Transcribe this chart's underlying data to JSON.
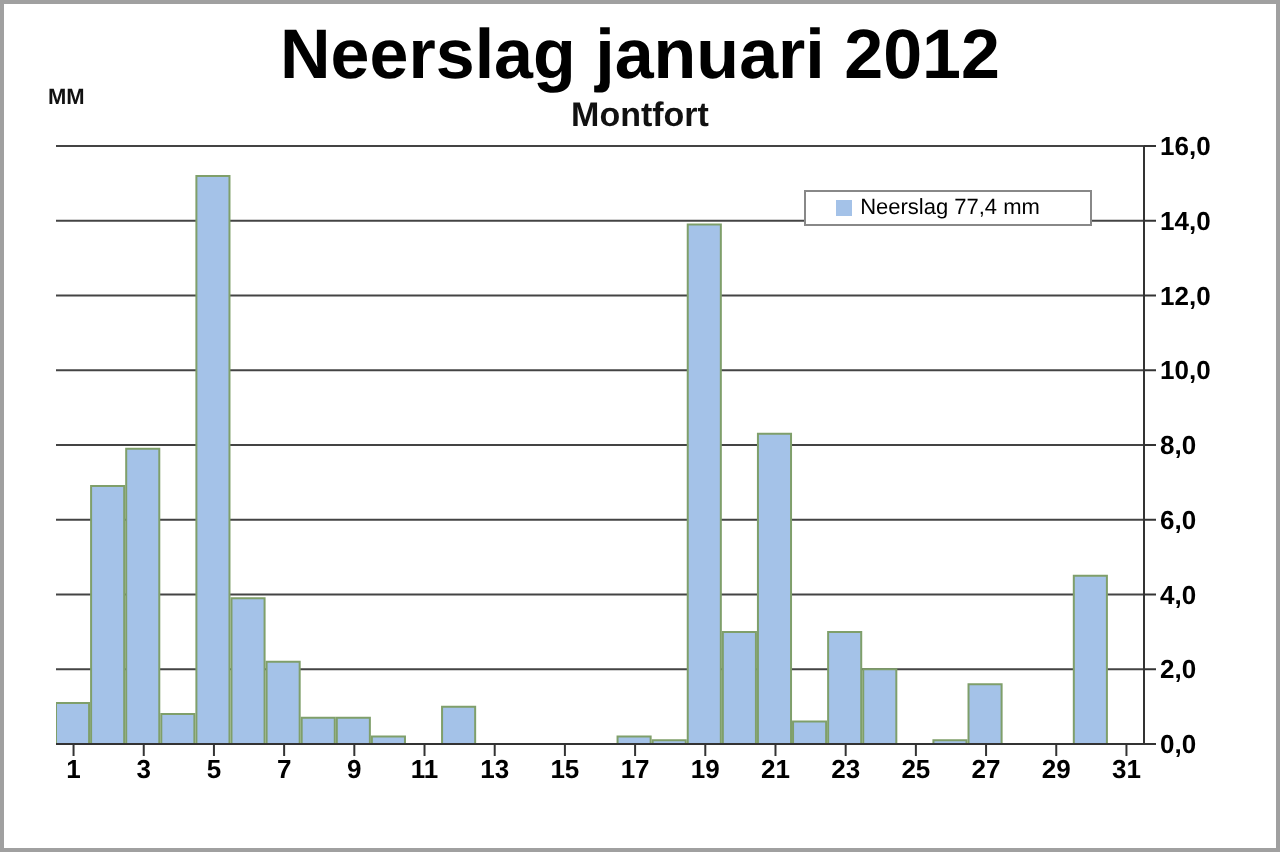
{
  "chart_data": {
    "type": "bar",
    "title": "Neerslag januari 2012",
    "subtitle": "Montfort",
    "ylabel": "MM",
    "x": [
      1,
      2,
      3,
      4,
      5,
      6,
      7,
      8,
      9,
      10,
      11,
      12,
      13,
      14,
      15,
      16,
      17,
      18,
      19,
      20,
      21,
      22,
      23,
      24,
      25,
      26,
      27,
      28,
      29,
      30,
      31
    ],
    "series": [
      {
        "name": "Neerslag 77,4 mm",
        "color": "#a4c2e8",
        "values": [
          1.1,
          6.9,
          7.9,
          0.8,
          15.2,
          3.9,
          2.2,
          0.7,
          0.7,
          0.2,
          0,
          1.0,
          0,
          0,
          0,
          0,
          0.2,
          0.1,
          13.9,
          3.0,
          8.3,
          0.6,
          3.0,
          2.0,
          0,
          0.1,
          1.6,
          0,
          0,
          4.5,
          0
        ]
      }
    ],
    "xlim": [
      0.5,
      31.5
    ],
    "xticks": [
      1,
      3,
      5,
      7,
      9,
      11,
      13,
      15,
      17,
      19,
      21,
      23,
      25,
      27,
      29,
      31
    ],
    "ylim": [
      0,
      16
    ],
    "yticks": [
      {
        "value": 0,
        "label": "0,0"
      },
      {
        "value": 2,
        "label": "2,0"
      },
      {
        "value": 4,
        "label": "4,0"
      },
      {
        "value": 6,
        "label": "6,0"
      },
      {
        "value": 8,
        "label": "8,0"
      },
      {
        "value": 10,
        "label": "10,0"
      },
      {
        "value": 12,
        "label": "12,0"
      },
      {
        "value": 14,
        "label": "14,0"
      },
      {
        "value": 16,
        "label": "16,0"
      }
    ],
    "grid": "y",
    "legend": "top right"
  }
}
